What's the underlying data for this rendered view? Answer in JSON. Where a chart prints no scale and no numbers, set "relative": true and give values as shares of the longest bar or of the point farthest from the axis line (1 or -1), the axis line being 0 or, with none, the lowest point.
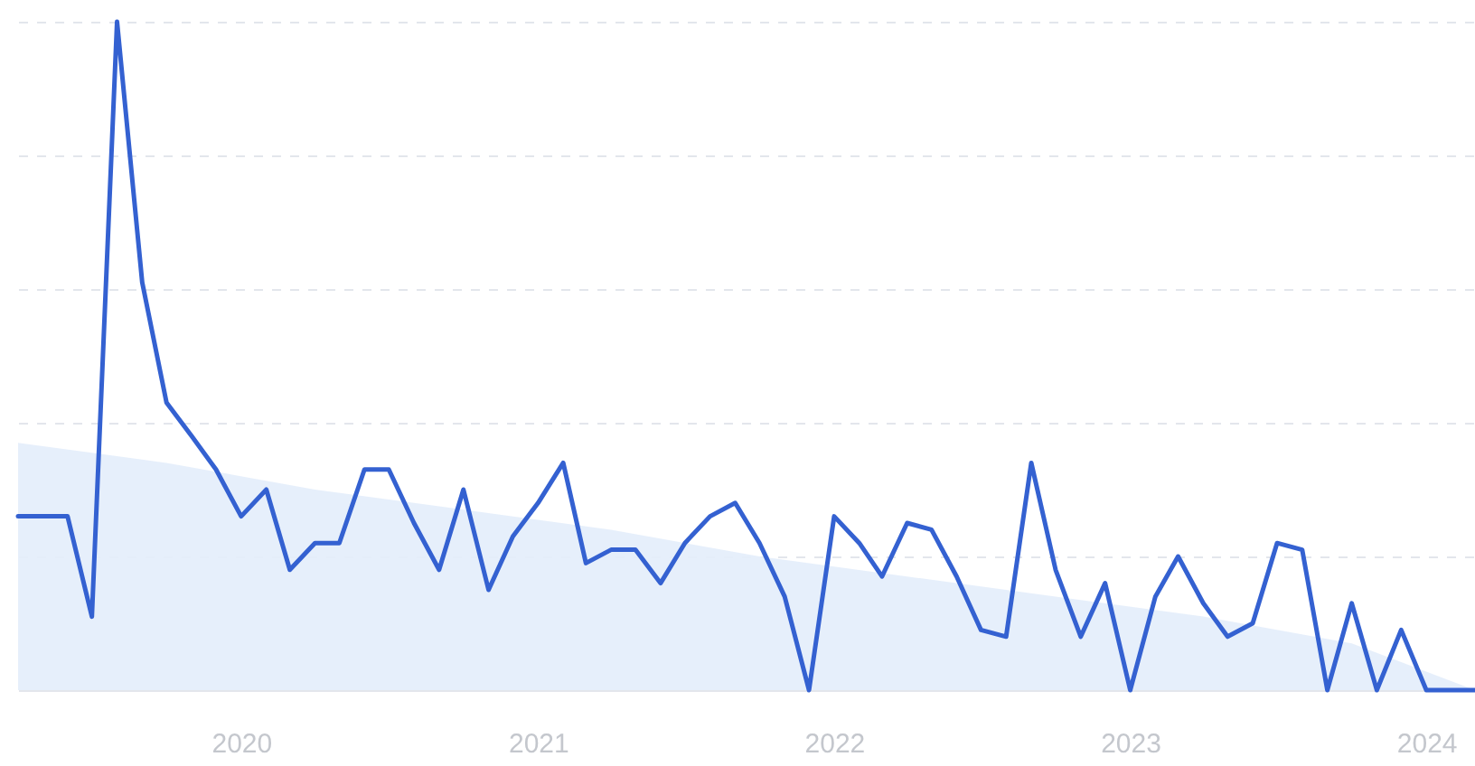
{
  "chart_data": {
    "type": "line",
    "relative": true,
    "grid": "y",
    "x": [
      "2019-04",
      "2019-05",
      "2019-06",
      "2019-07",
      "2019-08",
      "2019-09",
      "2019-10",
      "2019-11",
      "2019-12",
      "2020-01",
      "2020-02",
      "2020-03",
      "2020-04",
      "2020-05",
      "2020-06",
      "2020-07",
      "2020-08",
      "2020-09",
      "2020-10",
      "2020-11",
      "2020-12",
      "2021-01",
      "2021-02",
      "2021-03",
      "2021-04",
      "2021-05",
      "2021-06",
      "2021-07",
      "2021-08",
      "2021-09",
      "2021-10",
      "2021-11",
      "2021-12",
      "2022-01",
      "2022-02",
      "2022-03",
      "2022-04",
      "2022-05",
      "2022-06",
      "2022-07",
      "2022-08",
      "2022-09",
      "2022-10",
      "2022-11",
      "2022-12",
      "2023-01",
      "2023-02",
      "2023-03",
      "2023-04",
      "2023-05",
      "2023-06",
      "2023-07",
      "2023-08",
      "2023-09",
      "2023-10",
      "2023-11",
      "2023-12",
      "2024-01",
      "2024-02",
      "2024-03"
    ],
    "xlim": [
      "2019-04",
      "2024-03"
    ],
    "xticks": [
      "2020",
      "2021",
      "2022",
      "2023",
      "2024"
    ],
    "series": [
      {
        "type": "area",
        "color": "#e3edfb",
        "x": [
          "2019-04",
          "2019-10",
          "2020-04",
          "2020-10",
          "2021-04",
          "2021-10",
          "2022-04",
          "2022-10",
          "2023-04",
          "2023-10",
          "2024-03"
        ],
        "values": [
          0.37,
          0.34,
          0.3,
          0.27,
          0.24,
          0.2,
          0.17,
          0.14,
          0.11,
          0.07,
          0
        ]
      },
      {
        "color": "#3461d1",
        "values": [
          0.26,
          0.26,
          0.26,
          0.11,
          1,
          0.61,
          0.43,
          0.38,
          0.33,
          0.26,
          0.3,
          0.18,
          0.22,
          0.22,
          0.33,
          0.33,
          0.25,
          0.18,
          0.3,
          0.15,
          0.23,
          0.28,
          0.34,
          0.19,
          0.21,
          0.21,
          0.16,
          0.22,
          0.26,
          0.28,
          0.22,
          0.14,
          0,
          0.26,
          0.22,
          0.17,
          0.25,
          0.24,
          0.17,
          0.09,
          0.08,
          0.34,
          0.18,
          0.08,
          0.16,
          0,
          0.14,
          0.2,
          0.13,
          0.08,
          0.1,
          0.22,
          0.21,
          0,
          0.13,
          0,
          0.09,
          0,
          0,
          0
        ]
      }
    ]
  }
}
